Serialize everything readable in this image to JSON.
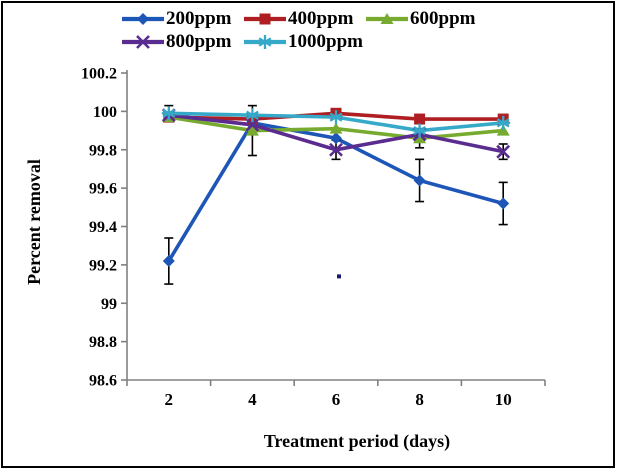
{
  "figure": {
    "background": "#ffffff",
    "border_color": "#000000",
    "axis_color": "#808080",
    "error_bar_color": "#000000"
  },
  "chart_data": {
    "type": "line",
    "title": "",
    "xlabel": "Treatment period (days)",
    "ylabel": "Percent removal",
    "x_categories": [
      "2",
      "4",
      "6",
      "8",
      "10"
    ],
    "y_ticks": [
      "98.6",
      "98.8",
      "99",
      "99.2",
      "99.4",
      "99.6",
      "99.8",
      "100",
      "100.2"
    ],
    "ylim": [
      98.6,
      100.2
    ],
    "grid": false,
    "legend_position": "top",
    "error_bars": true,
    "series": [
      {
        "name": "200ppm",
        "color": "#1E56B8",
        "marker": "diamond",
        "values": [
          99.22,
          99.94,
          99.86,
          99.64,
          99.52
        ],
        "errors": [
          0.12,
          0,
          0,
          0.11,
          0.11
        ]
      },
      {
        "name": "400ppm",
        "color": "#AF1E23",
        "marker": "square",
        "values": [
          99.97,
          99.96,
          99.99,
          99.96,
          99.96
        ],
        "errors": [
          0,
          0,
          0,
          0,
          0
        ]
      },
      {
        "name": "600ppm",
        "color": "#77AB30",
        "marker": "triangle",
        "values": [
          99.97,
          99.9,
          99.91,
          99.86,
          99.9
        ],
        "errors": [
          0,
          0.13,
          0,
          0.05,
          0
        ]
      },
      {
        "name": "800ppm",
        "color": "#5B2C8F",
        "marker": "x",
        "values": [
          99.98,
          99.93,
          99.8,
          99.88,
          99.79
        ],
        "errors": [
          0,
          0,
          0.05,
          0,
          0.04
        ]
      },
      {
        "name": "1000ppm",
        "color": "#36A9C9",
        "marker": "asterisk",
        "values": [
          99.99,
          99.98,
          99.97,
          99.9,
          99.94
        ],
        "errors": [
          0.04,
          0,
          0,
          0,
          0
        ]
      }
    ],
    "stray_mark": {
      "category_index": 2,
      "value": 99.14,
      "color": "#1a1a6e"
    }
  }
}
